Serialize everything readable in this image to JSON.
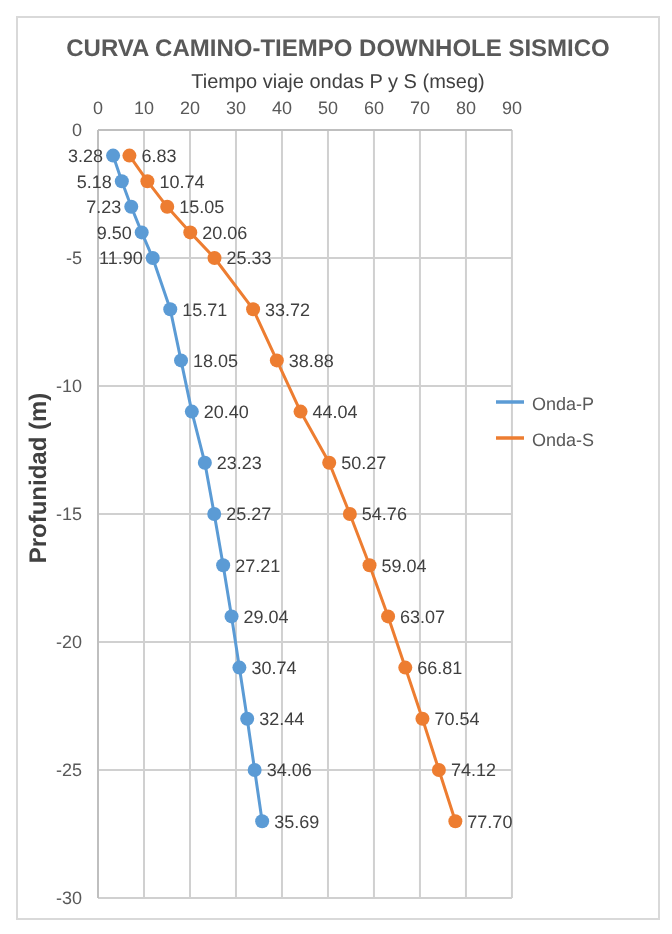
{
  "chart_data": {
    "type": "line",
    "title": "CURVA CAMINO-TIEMPO DOWNHOLE SISMICO",
    "xlabel": "Tiempo viaje ondas P y S (mseg)",
    "ylabel": "Profunidad (m)",
    "xlim": [
      0,
      90
    ],
    "xticks": [
      0,
      10,
      20,
      30,
      40,
      50,
      60,
      70,
      80,
      90
    ],
    "ylim": [
      -30,
      0
    ],
    "yticks": [
      0,
      -5,
      -10,
      -15,
      -20,
      -25,
      -30
    ],
    "grid": true,
    "orientation": "horizontal",
    "legend": "right",
    "marker": "circle",
    "line_style": "solid",
    "series": [
      {
        "name": "Onda-P",
        "color": "#5b9bd5",
        "values": [
          3.28,
          5.18,
          7.23,
          9.5,
          11.9,
          15.71,
          18.05,
          20.4,
          23.23,
          25.27,
          27.21,
          29.04,
          30.74,
          32.44,
          34.06,
          35.69
        ],
        "x": [
          -1,
          -2,
          -3,
          -4,
          -5,
          -7,
          -9,
          -11,
          -13,
          -15,
          -17,
          -19,
          -21,
          -23,
          -25,
          -27
        ],
        "value_labels": [
          "3.28",
          "5.18",
          "7.23",
          "9.50",
          "11.90",
          "15.71",
          "18.05",
          "20.40",
          "23.23",
          "25.27",
          "27.21",
          "29.04",
          "30.74",
          "32.44",
          "34.06",
          "35.69"
        ]
      },
      {
        "name": "Onda-S",
        "color": "#ed7d31",
        "values": [
          6.83,
          10.74,
          15.05,
          20.06,
          25.33,
          33.72,
          38.88,
          44.04,
          50.27,
          54.76,
          59.04,
          63.07,
          66.81,
          70.54,
          74.12,
          77.7
        ],
        "x": [
          -1,
          -2,
          -3,
          -4,
          -5,
          -7,
          -9,
          -11,
          -13,
          -15,
          -17,
          -19,
          -21,
          -23,
          -25,
          -27
        ],
        "value_labels": [
          "6.83",
          "10.74",
          "15.05",
          "20.06",
          "25.33",
          "33.72",
          "38.88",
          "44.04",
          "50.27",
          "54.76",
          "59.04",
          "63.07",
          "66.81",
          "70.54",
          "74.12",
          "77.70"
        ]
      }
    ]
  }
}
